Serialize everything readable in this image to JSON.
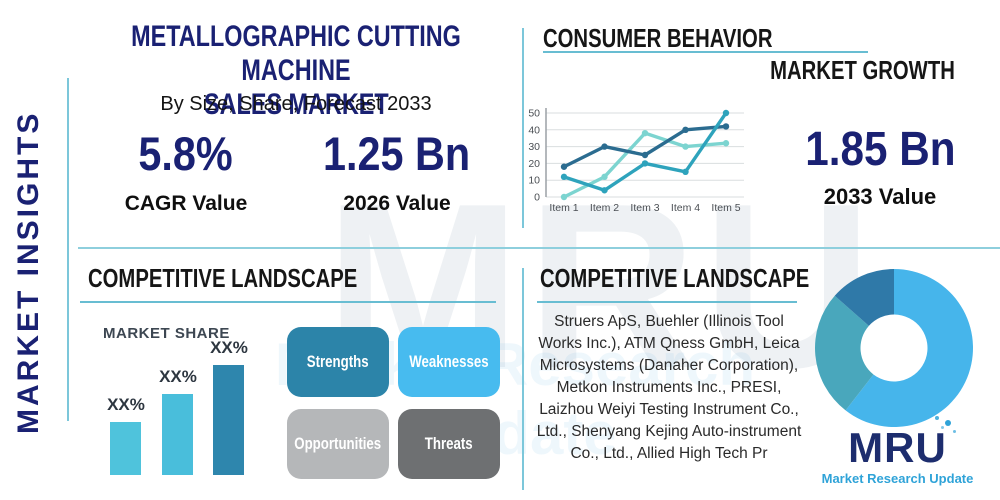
{
  "theme": {
    "navy": "#1A2173",
    "underline_teal": "#68bdd2",
    "divider_teal": "#7cc7da"
  },
  "sidebar": {
    "vertical_label": "MARKET INSIGHTS"
  },
  "header": {
    "title_line1": "METALLOGRAPHIC CUTTING MACHINE",
    "title_line2": "SALES MARKET",
    "subtitle": "By Size, Share, Forecast 2033"
  },
  "stats": {
    "cagr_value": "5.8%",
    "cagr_label": "CAGR Value",
    "base_value": "1.25 Bn",
    "base_label": "2026 Value",
    "forecast_value": "1.85 Bn",
    "forecast_label": "2033 Value"
  },
  "sections": {
    "consumer_behavior": {
      "title": "CONSUMER BEHAVIOR",
      "subtitle": "MARKET GROWTH"
    },
    "competitive_left": {
      "title": "COMPETITIVE LANDSCAPE",
      "market_share_label": "MARKET SHARE",
      "swot": [
        {
          "label": "Strengths",
          "color": "#2C84A9"
        },
        {
          "label": "Weaknesses",
          "color": "#47BBEF"
        },
        {
          "label": "Opportunities",
          "color": "#B5B7B9"
        },
        {
          "label": "Threats",
          "color": "#6E7072"
        }
      ]
    },
    "competitive_right": {
      "title": "COMPETITIVE LANDSCAPE",
      "company_lines": [
        "Struers ApS, Buehler (Illinois Tool",
        "Works Inc.), ATM Qness GmbH, Leica",
        "Microsystems (Danaher Corporation),",
        "Metkon Instruments Inc., PRESI,",
        "Laizhou Weiyi Testing Instrument Co.,",
        "Ltd., Shenyang Kejing Auto-instrument",
        "Co., Ltd., Allied High Tech Pr"
      ]
    }
  },
  "brand": {
    "logo_text_mr": "MR",
    "logo_text_u": "U",
    "logo_tagline": "Market Research Update",
    "watermark": "MRU",
    "watermark_tagline": "Market Research Update"
  },
  "chart_data": [
    {
      "id": "market_growth_line",
      "type": "line",
      "title": "",
      "x": [
        "Item 1",
        "Item 2",
        "Item 3",
        "Item 4",
        "Item 5"
      ],
      "series": [
        {
          "name": "light-aqua-series",
          "color": "#7CD4D0",
          "values": [
            0,
            12,
            38,
            30,
            32
          ]
        },
        {
          "name": "dark-blue-series",
          "color": "#2B6C90",
          "values": [
            18,
            30,
            25,
            40,
            42
          ]
        },
        {
          "name": "teal-series",
          "color": "#2EA3BC",
          "values": [
            12,
            4,
            20,
            15,
            50
          ]
        }
      ],
      "ylim": [
        0,
        50
      ],
      "yticks": [
        0,
        10,
        20,
        30,
        40,
        50
      ],
      "grid": true,
      "legend": "none"
    },
    {
      "id": "market_share_bar",
      "type": "bar",
      "title": "MARKET SHARE",
      "categories": [
        "XX%",
        "XX%",
        "XX%"
      ],
      "relative_heights": [
        0.48,
        0.74,
        1.0
      ],
      "colors": [
        "#4FC3DC",
        "#49BEDB",
        "#2E86AD"
      ],
      "value_labels": [
        "XX%",
        "XX%",
        "XX%"
      ]
    },
    {
      "id": "company_share_donut",
      "type": "pie",
      "slices": [
        {
          "name": "segment-1",
          "value": 60.5,
          "color": "#46B5EB"
        },
        {
          "name": "segment-2",
          "value": 26,
          "color": "#49A7BC"
        },
        {
          "name": "segment-3",
          "value": 13.5,
          "color": "#2F79A8"
        }
      ],
      "donut": true
    }
  ]
}
